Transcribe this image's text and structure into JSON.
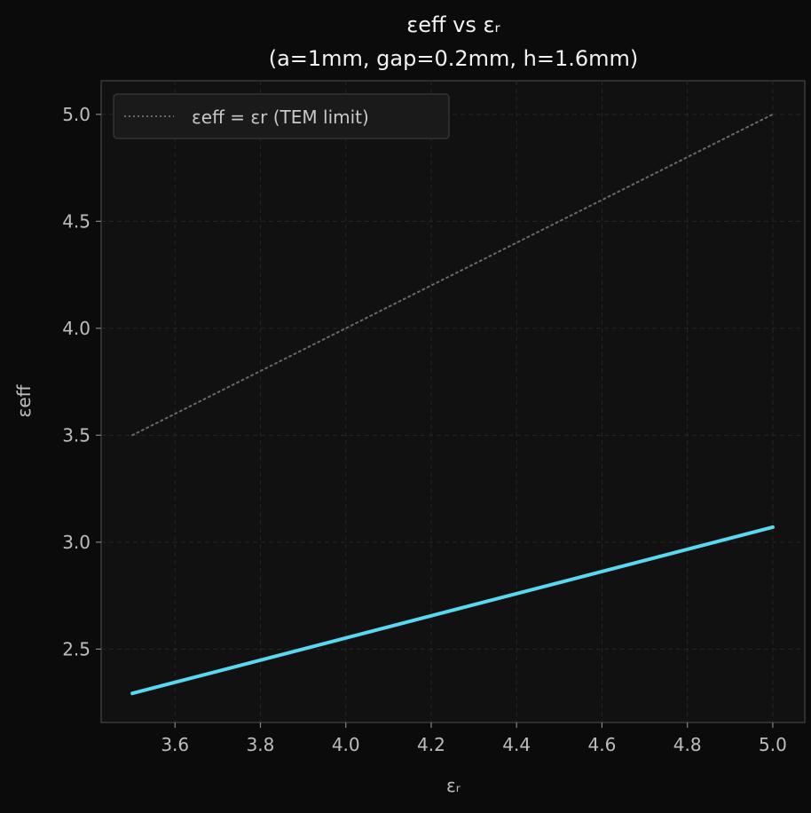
{
  "chart_data": {
    "type": "line",
    "title": "εeff vs εᵣ",
    "subtitle": "(a=1mm, gap=0.2mm, h=1.6mm)",
    "xlabel": "εᵣ",
    "ylabel": "εeff",
    "xlim": [
      3.427,
      5.075
    ],
    "ylim": [
      2.157,
      5.157
    ],
    "xticks": [
      3.6,
      3.8,
      4.0,
      4.2,
      4.4,
      4.6,
      4.8,
      5.0
    ],
    "yticks": [
      2.5,
      3.0,
      3.5,
      4.0,
      4.5,
      5.0
    ],
    "xtick_labels": [
      "3.6",
      "3.8",
      "4.0",
      "4.2",
      "4.4",
      "4.6",
      "4.8",
      "5.0"
    ],
    "ytick_labels": [
      "2.5",
      "3.0",
      "3.5",
      "4.0",
      "4.5",
      "5.0"
    ],
    "grid": true,
    "legend_placement": "upper-left",
    "series": [
      {
        "x": [
          3.5,
          5.0
        ],
        "y": [
          2.293,
          3.07
        ],
        "color": "#5ad8f0",
        "style": "solid"
      },
      {
        "name": "εeff = εr (TEM limit)",
        "x": [
          3.5,
          5.0
        ],
        "y": [
          3.5,
          5.0
        ],
        "color": "#6a6a6a",
        "style": "dotted"
      }
    ]
  }
}
